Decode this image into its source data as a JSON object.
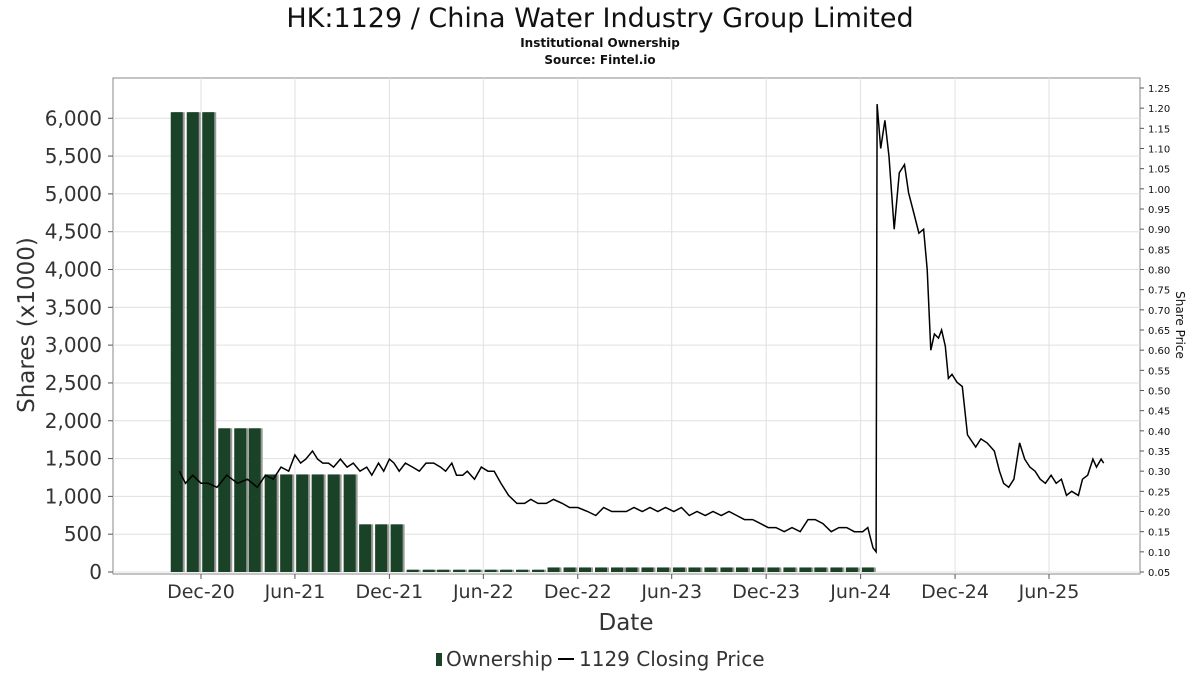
{
  "chart_data": {
    "type": "bar",
    "title": "HK:1129 / China Water Industry Group Limited",
    "subtitle": "Institutional Ownership",
    "source": "Source: Fintel.io",
    "xlabel": "Date",
    "ylabel": "Shares (x1000)",
    "y2label": "Share Price",
    "ylim": [
      0,
      6400
    ],
    "y2lim": [
      0.05,
      1.25
    ],
    "grid": true,
    "legend_position": "bottom-center",
    "x_ticks": [
      {
        "label": "Dec-20",
        "date": "2020-12-01"
      },
      {
        "label": "Jun-21",
        "date": "2021-06-01"
      },
      {
        "label": "Dec-21",
        "date": "2021-12-01"
      },
      {
        "label": "Jun-22",
        "date": "2022-06-01"
      },
      {
        "label": "Dec-22",
        "date": "2022-12-01"
      },
      {
        "label": "Jun-23",
        "date": "2023-06-01"
      },
      {
        "label": "Dec-23",
        "date": "2023-12-01"
      },
      {
        "label": "Jun-24",
        "date": "2024-06-01"
      },
      {
        "label": "Dec-24",
        "date": "2024-12-01"
      },
      {
        "label": "Jun-25",
        "date": "2025-06-01"
      }
    ],
    "y_ticks": [
      "0",
      "500",
      "1,000",
      "1,500",
      "2,000",
      "2,500",
      "3,000",
      "3,500",
      "4,000",
      "4,500",
      "5,000",
      "5,500",
      "6,000"
    ],
    "y_tick_values": [
      0,
      500,
      1000,
      1500,
      2000,
      2500,
      3000,
      3500,
      4000,
      4500,
      5000,
      5500,
      6000
    ],
    "y2_ticks": [
      "0.05",
      "0.10",
      "0.15",
      "0.20",
      "0.25",
      "0.30",
      "0.35",
      "0.40",
      "0.45",
      "0.50",
      "0.55",
      "0.60",
      "0.65",
      "0.70",
      "0.75",
      "0.80",
      "0.85",
      "0.90",
      "0.95",
      "1.00",
      "1.05",
      "1.10",
      "1.15",
      "1.20",
      "1.25"
    ],
    "y2_tick_values": [
      0.05,
      0.1,
      0.15,
      0.2,
      0.25,
      0.3,
      0.35,
      0.4,
      0.45,
      0.5,
      0.55,
      0.6,
      0.65,
      0.7,
      0.75,
      0.8,
      0.85,
      0.9,
      0.95,
      1.0,
      1.05,
      1.1,
      1.15,
      1.2,
      1.25
    ],
    "series": [
      {
        "name": "Ownership",
        "type": "bar",
        "color": "#1a4226",
        "points": [
          {
            "date": "2020-10-15",
            "value": 6080
          },
          {
            "date": "2020-11-15",
            "value": 6080
          },
          {
            "date": "2020-12-15",
            "value": 6080
          },
          {
            "date": "2021-01-15",
            "value": 1900
          },
          {
            "date": "2021-02-15",
            "value": 1900
          },
          {
            "date": "2021-03-15",
            "value": 1900
          },
          {
            "date": "2021-04-15",
            "value": 1290
          },
          {
            "date": "2021-05-15",
            "value": 1290
          },
          {
            "date": "2021-06-15",
            "value": 1290
          },
          {
            "date": "2021-07-15",
            "value": 1290
          },
          {
            "date": "2021-08-15",
            "value": 1290
          },
          {
            "date": "2021-09-15",
            "value": 1290
          },
          {
            "date": "2021-10-15",
            "value": 630
          },
          {
            "date": "2021-11-15",
            "value": 630
          },
          {
            "date": "2021-12-15",
            "value": 630
          },
          {
            "date": "2022-01-15",
            "value": 30
          },
          {
            "date": "2022-02-15",
            "value": 30
          },
          {
            "date": "2022-03-15",
            "value": 30
          },
          {
            "date": "2022-04-15",
            "value": 30
          },
          {
            "date": "2022-05-15",
            "value": 30
          },
          {
            "date": "2022-06-15",
            "value": 30
          },
          {
            "date": "2022-07-15",
            "value": 30
          },
          {
            "date": "2022-08-15",
            "value": 30
          },
          {
            "date": "2022-09-15",
            "value": 30
          },
          {
            "date": "2022-10-15",
            "value": 60
          },
          {
            "date": "2022-11-15",
            "value": 60
          },
          {
            "date": "2022-12-15",
            "value": 60
          },
          {
            "date": "2023-01-15",
            "value": 60
          },
          {
            "date": "2023-02-15",
            "value": 60
          },
          {
            "date": "2023-03-15",
            "value": 60
          },
          {
            "date": "2023-04-15",
            "value": 60
          },
          {
            "date": "2023-05-15",
            "value": 60
          },
          {
            "date": "2023-06-15",
            "value": 60
          },
          {
            "date": "2023-07-15",
            "value": 60
          },
          {
            "date": "2023-08-15",
            "value": 60
          },
          {
            "date": "2023-09-15",
            "value": 60
          },
          {
            "date": "2023-10-15",
            "value": 60
          },
          {
            "date": "2023-11-15",
            "value": 60
          },
          {
            "date": "2023-12-15",
            "value": 60
          },
          {
            "date": "2024-01-15",
            "value": 60
          },
          {
            "date": "2024-02-15",
            "value": 60
          },
          {
            "date": "2024-03-15",
            "value": 60
          },
          {
            "date": "2024-04-15",
            "value": 60
          },
          {
            "date": "2024-05-15",
            "value": 60
          },
          {
            "date": "2024-06-15",
            "value": 60
          }
        ]
      },
      {
        "name": "1129 Closing Price",
        "type": "line",
        "axis": "right",
        "color": "#000000",
        "points": [
          [
            "2020-10-20",
            0.3
          ],
          [
            "2020-11-01",
            0.27
          ],
          [
            "2020-11-15",
            0.29
          ],
          [
            "2020-12-01",
            0.27
          ],
          [
            "2020-12-15",
            0.27
          ],
          [
            "2021-01-01",
            0.26
          ],
          [
            "2021-01-20",
            0.29
          ],
          [
            "2021-02-10",
            0.27
          ],
          [
            "2021-03-01",
            0.28
          ],
          [
            "2021-03-20",
            0.26
          ],
          [
            "2021-04-05",
            0.29
          ],
          [
            "2021-04-20",
            0.28
          ],
          [
            "2021-05-05",
            0.31
          ],
          [
            "2021-05-20",
            0.3
          ],
          [
            "2021-06-01",
            0.34
          ],
          [
            "2021-06-12",
            0.32
          ],
          [
            "2021-06-22",
            0.33
          ],
          [
            "2021-07-05",
            0.35
          ],
          [
            "2021-07-15",
            0.33
          ],
          [
            "2021-07-25",
            0.32
          ],
          [
            "2021-08-05",
            0.32
          ],
          [
            "2021-08-15",
            0.31
          ],
          [
            "2021-08-28",
            0.33
          ],
          [
            "2021-09-10",
            0.31
          ],
          [
            "2021-09-22",
            0.32
          ],
          [
            "2021-10-05",
            0.3
          ],
          [
            "2021-10-18",
            0.31
          ],
          [
            "2021-10-28",
            0.29
          ],
          [
            "2021-11-10",
            0.32
          ],
          [
            "2021-11-20",
            0.3
          ],
          [
            "2021-12-01",
            0.33
          ],
          [
            "2021-12-10",
            0.32
          ],
          [
            "2021-12-20",
            0.3
          ],
          [
            "2022-01-01",
            0.32
          ],
          [
            "2022-01-15",
            0.31
          ],
          [
            "2022-01-28",
            0.3
          ],
          [
            "2022-02-10",
            0.32
          ],
          [
            "2022-02-25",
            0.32
          ],
          [
            "2022-03-10",
            0.31
          ],
          [
            "2022-03-20",
            0.3
          ],
          [
            "2022-04-01",
            0.32
          ],
          [
            "2022-04-10",
            0.29
          ],
          [
            "2022-04-22",
            0.29
          ],
          [
            "2022-05-01",
            0.3
          ],
          [
            "2022-05-15",
            0.28
          ],
          [
            "2022-05-28",
            0.31
          ],
          [
            "2022-06-10",
            0.3
          ],
          [
            "2022-06-22",
            0.3
          ],
          [
            "2022-07-05",
            0.27
          ],
          [
            "2022-07-20",
            0.24
          ],
          [
            "2022-08-05",
            0.22
          ],
          [
            "2022-08-20",
            0.22
          ],
          [
            "2022-09-01",
            0.23
          ],
          [
            "2022-09-15",
            0.22
          ],
          [
            "2022-10-01",
            0.22
          ],
          [
            "2022-10-15",
            0.23
          ],
          [
            "2022-11-01",
            0.22
          ],
          [
            "2022-11-15",
            0.21
          ],
          [
            "2022-12-01",
            0.21
          ],
          [
            "2022-12-20",
            0.2
          ],
          [
            "2023-01-05",
            0.19
          ],
          [
            "2023-01-20",
            0.21
          ],
          [
            "2023-02-05",
            0.2
          ],
          [
            "2023-02-20",
            0.2
          ],
          [
            "2023-03-05",
            0.2
          ],
          [
            "2023-03-20",
            0.21
          ],
          [
            "2023-04-05",
            0.2
          ],
          [
            "2023-04-20",
            0.21
          ],
          [
            "2023-05-05",
            0.2
          ],
          [
            "2023-05-20",
            0.21
          ],
          [
            "2023-06-05",
            0.2
          ],
          [
            "2023-06-20",
            0.21
          ],
          [
            "2023-07-05",
            0.19
          ],
          [
            "2023-07-20",
            0.2
          ],
          [
            "2023-08-05",
            0.19
          ],
          [
            "2023-08-20",
            0.2
          ],
          [
            "2023-09-05",
            0.19
          ],
          [
            "2023-09-20",
            0.2
          ],
          [
            "2023-10-05",
            0.19
          ],
          [
            "2023-10-20",
            0.18
          ],
          [
            "2023-11-05",
            0.18
          ],
          [
            "2023-11-20",
            0.17
          ],
          [
            "2023-12-05",
            0.16
          ],
          [
            "2023-12-20",
            0.16
          ],
          [
            "2024-01-05",
            0.15
          ],
          [
            "2024-01-20",
            0.16
          ],
          [
            "2024-02-05",
            0.15
          ],
          [
            "2024-02-20",
            0.18
          ],
          [
            "2024-03-05",
            0.18
          ],
          [
            "2024-03-20",
            0.17
          ],
          [
            "2024-04-05",
            0.15
          ],
          [
            "2024-04-20",
            0.16
          ],
          [
            "2024-05-05",
            0.16
          ],
          [
            "2024-05-20",
            0.15
          ],
          [
            "2024-06-05",
            0.15
          ],
          [
            "2024-06-15",
            0.16
          ],
          [
            "2024-06-25",
            0.11
          ],
          [
            "2024-07-01",
            0.1
          ],
          [
            "2024-07-03",
            1.21
          ],
          [
            "2024-07-10",
            1.1
          ],
          [
            "2024-07-18",
            1.17
          ],
          [
            "2024-07-26",
            1.08
          ],
          [
            "2024-08-05",
            0.9
          ],
          [
            "2024-08-15",
            1.04
          ],
          [
            "2024-08-25",
            1.06
          ],
          [
            "2024-09-02",
            0.99
          ],
          [
            "2024-09-12",
            0.94
          ],
          [
            "2024-09-22",
            0.89
          ],
          [
            "2024-10-01",
            0.9
          ],
          [
            "2024-10-08",
            0.8
          ],
          [
            "2024-10-15",
            0.6
          ],
          [
            "2024-10-22",
            0.64
          ],
          [
            "2024-10-30",
            0.63
          ],
          [
            "2024-11-05",
            0.65
          ],
          [
            "2024-11-12",
            0.61
          ],
          [
            "2024-11-18",
            0.53
          ],
          [
            "2024-11-25",
            0.54
          ],
          [
            "2024-12-05",
            0.52
          ],
          [
            "2024-12-15",
            0.51
          ],
          [
            "2024-12-25",
            0.39
          ],
          [
            "2025-01-10",
            0.36
          ],
          [
            "2025-01-20",
            0.38
          ],
          [
            "2025-02-01",
            0.37
          ],
          [
            "2025-02-15",
            0.35
          ],
          [
            "2025-02-25",
            0.3
          ],
          [
            "2025-03-05",
            0.27
          ],
          [
            "2025-03-15",
            0.26
          ],
          [
            "2025-03-25",
            0.28
          ],
          [
            "2025-04-05",
            0.37
          ],
          [
            "2025-04-15",
            0.33
          ],
          [
            "2025-04-25",
            0.31
          ],
          [
            "2025-05-05",
            0.3
          ],
          [
            "2025-05-15",
            0.28
          ],
          [
            "2025-05-25",
            0.27
          ],
          [
            "2025-06-05",
            0.29
          ],
          [
            "2025-06-15",
            0.27
          ],
          [
            "2025-06-25",
            0.28
          ],
          [
            "2025-07-05",
            0.24
          ],
          [
            "2025-07-15",
            0.25
          ],
          [
            "2025-07-28",
            0.24
          ],
          [
            "2025-08-05",
            0.28
          ],
          [
            "2025-08-15",
            0.29
          ],
          [
            "2025-08-25",
            0.33
          ],
          [
            "2025-09-01",
            0.31
          ],
          [
            "2025-09-10",
            0.33
          ],
          [
            "2025-09-15",
            0.32
          ]
        ]
      }
    ],
    "legend": [
      {
        "label": "Ownership",
        "color": "#1a4226",
        "marker": "bar"
      },
      {
        "label": "1129 Closing Price",
        "color": "#000000",
        "marker": "line"
      }
    ]
  }
}
